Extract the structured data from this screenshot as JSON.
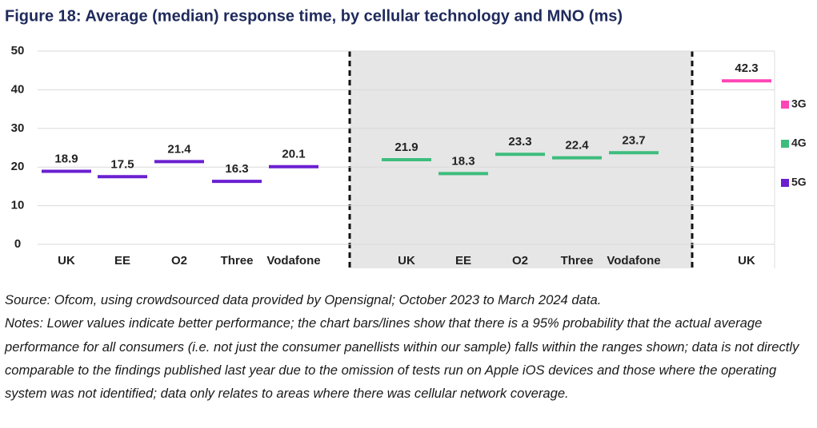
{
  "chart_data": {
    "type": "marker",
    "title": "Figure 18: Average (median) response time, by cellular technology and MNO (ms)",
    "categories": [
      "UK",
      "EE",
      "O2",
      "Three",
      "Vodafone",
      "UK",
      "EE",
      "O2",
      "Three",
      "Vodafone",
      "UK"
    ],
    "series": [
      {
        "name": "3G",
        "color": "#ff45b5",
        "values": [
          null,
          null,
          null,
          null,
          null,
          null,
          null,
          null,
          null,
          null,
          42.3
        ]
      },
      {
        "name": "4G",
        "color": "#3dbd7d",
        "values": [
          null,
          null,
          null,
          null,
          null,
          21.9,
          18.3,
          23.3,
          22.4,
          23.7,
          null
        ]
      },
      {
        "name": "5G",
        "color": "#6a1fd0",
        "values": [
          18.9,
          17.5,
          21.4,
          16.3,
          20.1,
          null,
          null,
          null,
          null,
          null,
          null
        ]
      }
    ],
    "ylim": [
      0,
      50
    ],
    "yticks": [
      0,
      10,
      20,
      30,
      40,
      50
    ],
    "grid": true,
    "legend": "right",
    "notes": [
      "Source: Ofcom, using crowdsourced data provided by Opensignal; October 2023 to March 2024 data.",
      "Notes: Lower values indicate better performance; the chart bars/lines show that there is a 95% probability that the actual average performance for all consumers (i.e. not just the consumer panellists within our sample) falls within the ranges shown; data is not directly comparable to the findings published last year due to the omission of tests run on Apple iOS devices and those where the operating system was not identified; data only relates to areas where there was cellular network coverage."
    ]
  }
}
